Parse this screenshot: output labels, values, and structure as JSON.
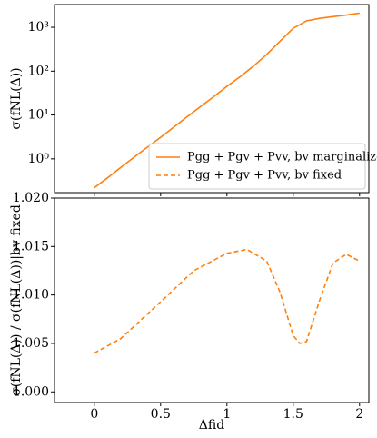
{
  "chart_data": [
    {
      "type": "line",
      "log_scale": true,
      "ylabel": "σ(fNL(Δ))",
      "xlim": [
        -0.3,
        2.07
      ],
      "xticks": [
        0,
        0.5,
        1,
        1.5,
        2
      ],
      "ylim": [
        0.17,
        3300
      ],
      "yticks": [
        {
          "value": 1,
          "label": "10⁰"
        },
        {
          "value": 10,
          "label": "10¹"
        },
        {
          "value": 100,
          "label": "10²"
        },
        {
          "value": 1000,
          "label": "10³"
        }
      ],
      "legend": "lower right",
      "x": [
        0,
        0.1,
        0.2,
        0.3,
        0.4,
        0.5,
        0.6,
        0.7,
        0.8,
        0.9,
        1.0,
        1.1,
        1.2,
        1.3,
        1.4,
        1.5,
        1.6,
        1.7,
        1.8,
        1.9,
        2.0
      ],
      "series": [
        {
          "name": "Pgg + Pgv + Pvv, bv marginalized",
          "color": "#ff7f0e",
          "dashed": false,
          "values": [
            0.22,
            0.37,
            0.64,
            1.09,
            1.85,
            3.1,
            5.3,
            9.1,
            15.5,
            26,
            45,
            75,
            130,
            240,
            480,
            950,
            1400,
            1600,
            1750,
            1900,
            2100
          ]
        }
      ]
    },
    {
      "type": "line",
      "log_scale": false,
      "ylabel": "σ(fNL(Δ)) / σ(fNL(Δ))|bv fixed",
      "xlabel": "Δfid",
      "xlim": [
        -0.3,
        2.07
      ],
      "xticks": [
        0,
        0.5,
        1,
        1.5,
        2
      ],
      "ylim": [
        0.9989,
        1.02
      ],
      "yticks": [
        {
          "value": 1.0,
          "label": "1.000"
        },
        {
          "value": 1.005,
          "label": "1.005"
        },
        {
          "value": 1.01,
          "label": "1.010"
        },
        {
          "value": 1.015,
          "label": "1.015"
        },
        {
          "value": 1.02,
          "label": "1.020"
        }
      ],
      "x": [
        0,
        0.2,
        0.5,
        0.75,
        1.0,
        1.15,
        1.3,
        1.4,
        1.5,
        1.55,
        1.6,
        1.7,
        1.8,
        1.9,
        2.0
      ],
      "series": [
        {
          "name": "Pgg + Pgv + Pvv, bv fixed",
          "color": "#ff7f0e",
          "dashed": true,
          "values": [
            1.004,
            1.0055,
            1.0093,
            1.0125,
            1.0143,
            1.0147,
            1.0135,
            1.0103,
            1.0058,
            1.005,
            1.0052,
            1.0095,
            1.0133,
            1.0142,
            1.0135
          ]
        }
      ]
    }
  ]
}
